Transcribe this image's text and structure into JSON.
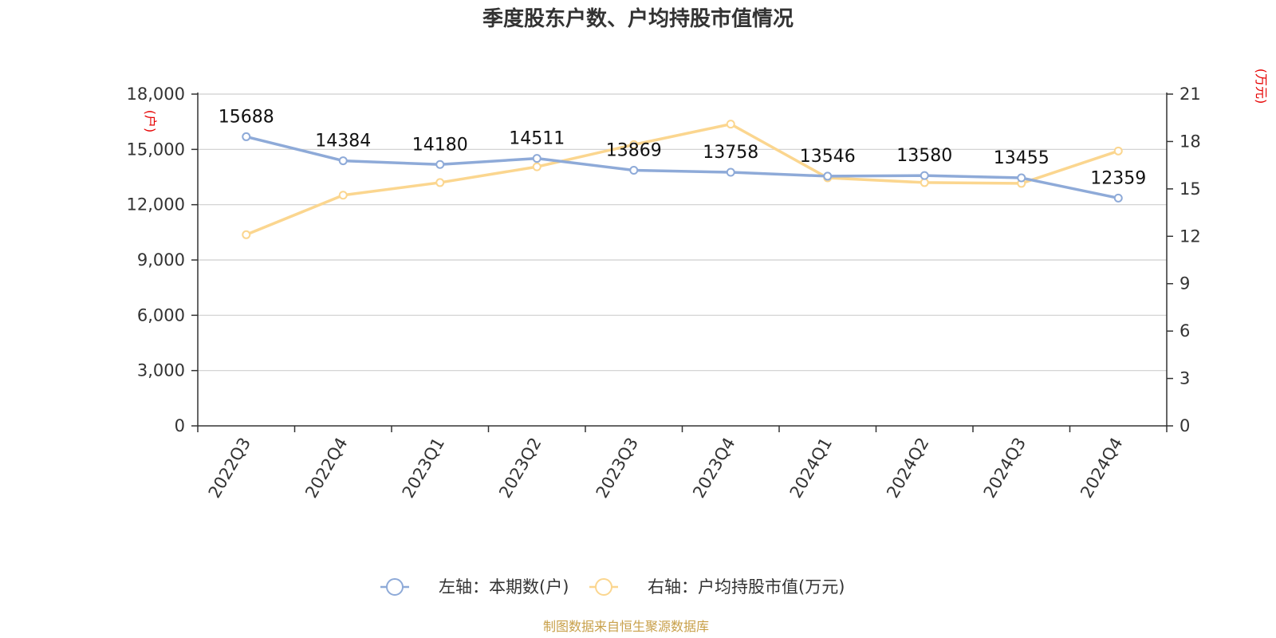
{
  "chart_data": {
    "type": "line",
    "title": "季度股东户数、户均持股市值情况",
    "categories": [
      "2022Q3",
      "2022Q4",
      "2023Q1",
      "2023Q2",
      "2023Q3",
      "2023Q4",
      "2024Q1",
      "2024Q2",
      "2024Q3",
      "2024Q4"
    ],
    "y_left": {
      "unit": "(户)",
      "min": 0,
      "max": 18000,
      "ticks": [
        "0",
        "3,000",
        "6,000",
        "9,000",
        "12,000",
        "15,000",
        "18,000"
      ]
    },
    "y_right": {
      "unit": "(万元)",
      "min": 0,
      "max": 21,
      "ticks": [
        "0",
        "3",
        "6",
        "9",
        "12",
        "15",
        "18",
        "21"
      ]
    },
    "grid": true,
    "legend_position": "bottom-center",
    "series": [
      {
        "name": "左轴：本期数(户)",
        "axis": "left",
        "color": "#8eaad8",
        "values": [
          15688,
          14384,
          14180,
          14511,
          13869,
          13758,
          13546,
          13580,
          13455,
          12359
        ],
        "labels": [
          "15688",
          "14384",
          "14180",
          "14511",
          "13869",
          "13758",
          "13546",
          "13580",
          "13455",
          "12359"
        ]
      },
      {
        "name": "右轴：户均持股市值(万元)",
        "axis": "right",
        "color": "#fbd68f",
        "values": [
          12.1,
          14.6,
          15.4,
          16.4,
          17.8,
          19.1,
          15.7,
          15.4,
          15.35,
          17.4
        ]
      }
    ]
  },
  "source": "制图数据来自恒生聚源数据库"
}
